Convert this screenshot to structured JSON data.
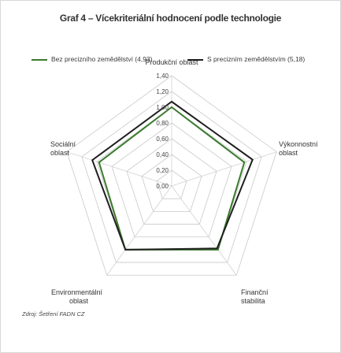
{
  "title": "Graf 4 – Vícekriteriální hodnocení podle technologie",
  "source": "Zdroj: Šetření FADN CZ",
  "chart_data": {
    "type": "radar",
    "axes": [
      {
        "label": [
          "Produkční oblast"
        ]
      },
      {
        "label": [
          "Výkonnostní",
          "oblast"
        ]
      },
      {
        "label": [
          "Finanční",
          "stabilita"
        ]
      },
      {
        "label": [
          "Environmentální",
          "oblast"
        ]
      },
      {
        "label": [
          "Sociální",
          "oblast"
        ]
      }
    ],
    "ticks": [
      "0,00",
      "0,20",
      "0,40",
      "0,60",
      "0,80",
      "1,00",
      "1,20",
      "1,40"
    ],
    "range": [
      0,
      1.4
    ],
    "series": [
      {
        "name": "Bez precizního zemědělství (4,93)",
        "color": "#3a7a2c",
        "values": [
          1.0,
          0.97,
          1.0,
          1.0,
          0.97
        ]
      },
      {
        "name": "S precizním zemědělstvím (5,18)",
        "color": "#1f1f1f",
        "values": [
          1.07,
          1.08,
          0.98,
          1.0,
          1.06
        ]
      }
    ]
  }
}
